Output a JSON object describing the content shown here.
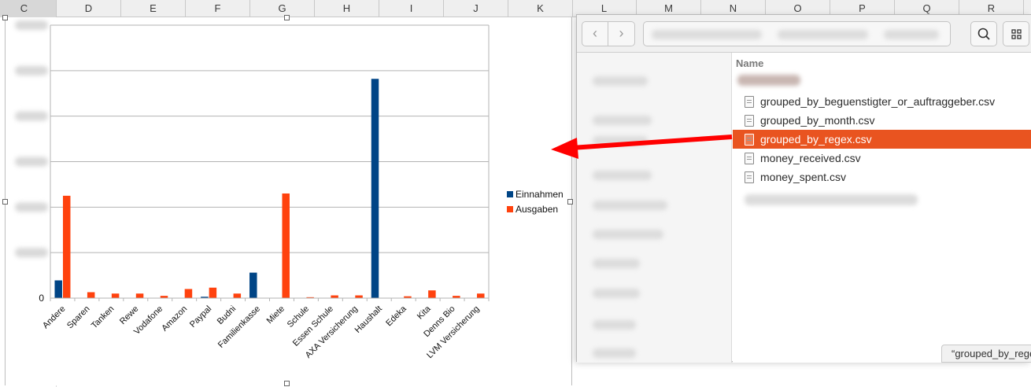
{
  "spreadsheet": {
    "columns_left": [
      "C",
      "D",
      "E",
      "F",
      "G",
      "H",
      "I",
      "J",
      "K"
    ],
    "columns_right": [
      "L",
      "M",
      "N",
      "O",
      "P",
      "Q",
      "R"
    ]
  },
  "chart_data": {
    "type": "bar",
    "categories": [
      "Andere",
      "Sparen",
      "Tanken",
      "Rewe",
      "Vodafone",
      "Amazon",
      "Paypal",
      "Budni",
      "Familienkasse",
      "Miete",
      "Schule",
      "Essen Schule",
      "AXA Versicherung",
      "Haushalt",
      "Edeka",
      "Kita",
      "Denns Bio",
      "LVM Versicherung"
    ],
    "series": [
      {
        "name": "Einnahmen",
        "color": "#004586",
        "values": [
          0.39,
          0,
          0,
          0,
          0,
          0,
          0.03,
          0,
          0.56,
          0,
          0,
          0,
          0,
          4.82,
          0,
          0,
          0,
          0
        ]
      },
      {
        "name": "Ausgaben",
        "color": "#ff420e",
        "values": [
          2.25,
          0.13,
          0.1,
          0.1,
          0.05,
          0.2,
          0.23,
          0.1,
          0,
          2.3,
          0.02,
          0.06,
          0.06,
          0,
          0.04,
          0.17,
          0.05,
          0.1
        ]
      }
    ],
    "y_tick_labels": [
      "0"
    ],
    "ylim": [
      0,
      6
    ],
    "grid": true,
    "legend_position": "right"
  },
  "file_manager": {
    "name_column_header": "Name",
    "files": [
      {
        "name": "grouped_by_beguenstigter_or_auftraggeber.csv",
        "selected": false
      },
      {
        "name": "grouped_by_month.csv",
        "selected": false
      },
      {
        "name": "grouped_by_regex.csv",
        "selected": true
      },
      {
        "name": "money_received.csv",
        "selected": false
      },
      {
        "name": "money_spent.csv",
        "selected": false
      }
    ],
    "status_text": "“grouped_by_regex.csv” selected",
    "accent_color": "#e95420",
    "icons": {
      "back": "chevron-left-icon",
      "forward": "chevron-right-icon",
      "search": "search-icon",
      "view": "grid-view-icon",
      "file": "text-file-icon"
    }
  },
  "annotation": {
    "arrow_color": "#ff0000"
  }
}
